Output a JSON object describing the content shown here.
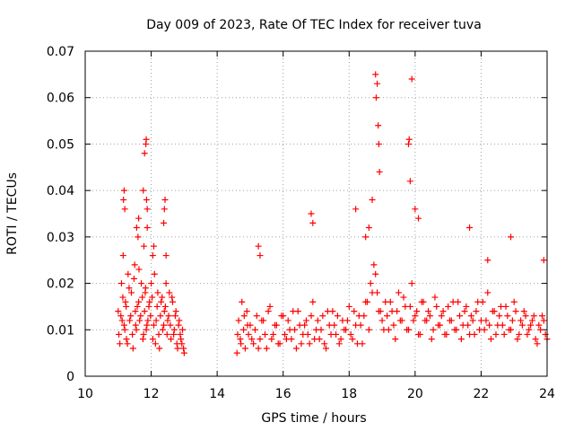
{
  "chart_data": {
    "type": "scatter",
    "title": "Day 009 of 2023, Rate Of TEC Index for receiver tuva",
    "xlabel": "GPS time / hours",
    "ylabel": "ROTI / TECUs",
    "xlim": [
      10,
      24
    ],
    "ylim": [
      0,
      0.07
    ],
    "xticks": [
      "10",
      "12",
      "14",
      "16",
      "18",
      "20",
      "22",
      "24"
    ],
    "yticks": [
      "0",
      "0.01",
      "0.02",
      "0.03",
      "0.04",
      "0.05",
      "0.06",
      "0.07"
    ],
    "grid": true,
    "marker": "+",
    "color": "#ff0000",
    "series": [
      {
        "x": [
          11.0,
          11.05,
          11.1,
          11.12,
          11.15,
          11.2,
          11.22,
          11.25,
          11.3,
          11.35,
          11.4,
          11.45,
          11.5,
          11.52,
          11.55,
          11.6,
          11.62,
          11.65,
          11.7,
          11.75,
          11.78,
          11.8,
          11.82,
          11.85,
          11.88,
          11.9,
          11.95,
          12.0,
          12.05,
          12.1,
          12.15,
          12.2,
          12.25,
          12.3,
          12.35,
          12.4,
          12.45,
          12.5,
          12.55,
          12.6,
          12.65,
          12.7,
          12.75,
          12.8,
          12.85,
          12.9,
          12.95,
          13.0,
          11.02,
          11.08,
          11.14,
          11.18,
          11.24,
          11.28,
          11.33,
          11.38,
          11.43,
          11.48,
          11.53,
          11.58,
          11.63,
          11.68,
          11.73,
          11.77,
          11.83,
          11.87,
          11.93,
          11.98,
          12.03,
          12.08,
          12.13,
          12.18,
          12.23,
          12.28,
          12.33,
          12.38,
          12.43,
          12.48,
          12.53,
          12.58,
          12.63,
          12.68,
          12.73,
          12.78,
          12.83,
          12.88,
          12.93,
          12.98,
          11.16,
          11.18,
          11.2,
          11.56,
          11.62,
          11.76,
          11.8,
          11.84,
          11.85,
          11.86,
          11.88,
          12.05,
          12.08,
          12.38,
          12.4,
          12.42,
          12.45
        ],
        "y": [
          0.014,
          0.007,
          0.02,
          0.012,
          0.026,
          0.01,
          0.016,
          0.008,
          0.022,
          0.012,
          0.018,
          0.006,
          0.024,
          0.014,
          0.01,
          0.03,
          0.016,
          0.012,
          0.02,
          0.008,
          0.028,
          0.014,
          0.018,
          0.01,
          0.032,
          0.012,
          0.016,
          0.02,
          0.008,
          0.022,
          0.012,
          0.018,
          0.006,
          0.016,
          0.01,
          0.014,
          0.02,
          0.012,
          0.018,
          0.008,
          0.016,
          0.01,
          0.014,
          0.006,
          0.012,
          0.008,
          0.01,
          0.005,
          0.009,
          0.013,
          0.017,
          0.011,
          0.015,
          0.007,
          0.019,
          0.013,
          0.009,
          0.021,
          0.011,
          0.015,
          0.023,
          0.013,
          0.017,
          0.009,
          0.019,
          0.011,
          0.015,
          0.013,
          0.017,
          0.011,
          0.007,
          0.015,
          0.009,
          0.013,
          0.017,
          0.011,
          0.015,
          0.009,
          0.013,
          0.011,
          0.017,
          0.009,
          0.013,
          0.007,
          0.011,
          0.009,
          0.007,
          0.006,
          0.038,
          0.04,
          0.036,
          0.032,
          0.034,
          0.04,
          0.048,
          0.05,
          0.051,
          0.038,
          0.036,
          0.026,
          0.028,
          0.033,
          0.036,
          0.038,
          0.026
        ]
      },
      {
        "x": [
          14.6,
          14.65,
          14.7,
          14.75,
          14.8,
          14.85,
          14.9,
          14.95,
          15.0,
          15.1,
          15.2,
          15.3,
          15.4,
          15.5,
          15.6,
          15.7,
          15.8,
          15.9,
          16.0,
          16.1,
          16.2,
          16.3,
          16.4,
          16.5,
          16.6,
          16.7,
          16.8,
          16.9,
          17.0,
          17.1,
          17.2,
          17.3,
          17.4,
          17.5,
          17.6,
          17.7,
          17.8,
          17.9,
          18.0,
          18.1,
          18.2,
          18.3,
          18.4,
          18.5,
          18.6,
          18.7,
          18.8,
          18.9,
          19.0,
          19.1,
          19.2,
          19.3,
          19.4,
          19.5,
          19.6,
          19.7,
          19.8,
          19.9,
          20.0,
          20.1,
          20.2,
          20.3,
          20.4,
          20.5,
          20.6,
          20.7,
          20.8,
          20.9,
          21.0,
          21.1,
          21.2,
          21.3,
          21.4,
          21.5,
          21.6,
          21.7,
          21.8,
          21.9,
          22.0,
          22.1,
          22.2,
          22.3,
          22.4,
          22.5,
          22.6,
          22.7,
          22.8,
          22.9,
          23.0,
          23.1,
          23.2,
          23.3,
          23.4,
          23.5,
          23.6,
          23.7,
          23.8,
          23.9,
          24.0,
          14.62,
          14.72,
          14.82,
          14.92,
          15.05,
          15.15,
          15.25,
          15.35,
          15.45,
          15.55,
          15.65,
          15.75,
          15.85,
          15.95,
          16.05,
          16.15,
          16.25,
          16.35,
          16.45,
          16.55,
          16.65,
          16.75,
          16.85,
          16.95,
          17.05,
          17.15,
          17.25,
          17.35,
          17.45,
          17.55,
          17.65,
          17.75,
          17.85,
          17.95,
          18.05,
          18.15,
          18.25,
          18.35,
          18.45,
          18.55,
          18.65,
          18.75,
          18.85,
          18.95,
          19.05,
          19.15,
          19.25,
          19.35,
          19.45,
          19.55,
          19.65,
          19.75,
          19.85,
          19.95,
          20.05,
          20.15,
          20.25,
          20.35,
          20.45,
          20.55,
          20.65,
          20.75,
          20.85,
          20.95,
          21.05,
          21.15,
          21.25,
          21.35,
          21.45,
          21.55,
          21.65,
          21.75,
          21.85,
          21.95,
          22.05,
          22.15,
          22.25,
          22.35,
          22.45,
          22.55,
          22.65,
          22.75,
          22.85,
          22.95,
          23.05,
          23.15,
          23.25,
          23.35,
          23.45,
          23.55,
          23.65,
          23.75,
          23.85,
          23.95,
          15.25,
          15.3,
          16.85,
          16.9,
          18.2,
          18.5,
          18.6,
          18.7,
          18.8,
          18.82,
          18.85,
          18.88,
          18.9,
          18.92,
          19.8,
          19.82,
          19.85,
          19.9,
          20.0,
          20.1,
          21.65,
          22.2,
          22.9,
          23.9
        ],
        "y": [
          0.005,
          0.012,
          0.008,
          0.016,
          0.01,
          0.006,
          0.014,
          0.009,
          0.011,
          0.007,
          0.013,
          0.008,
          0.012,
          0.006,
          0.015,
          0.009,
          0.011,
          0.007,
          0.013,
          0.008,
          0.01,
          0.014,
          0.006,
          0.011,
          0.009,
          0.012,
          0.007,
          0.016,
          0.01,
          0.008,
          0.013,
          0.006,
          0.011,
          0.014,
          0.009,
          0.007,
          0.012,
          0.01,
          0.015,
          0.008,
          0.011,
          0.013,
          0.007,
          0.016,
          0.01,
          0.018,
          0.022,
          0.014,
          0.012,
          0.016,
          0.01,
          0.014,
          0.008,
          0.018,
          0.012,
          0.015,
          0.01,
          0.02,
          0.013,
          0.009,
          0.016,
          0.012,
          0.014,
          0.008,
          0.017,
          0.011,
          0.013,
          0.009,
          0.015,
          0.012,
          0.01,
          0.016,
          0.008,
          0.014,
          0.011,
          0.013,
          0.009,
          0.016,
          0.012,
          0.01,
          0.018,
          0.008,
          0.014,
          0.011,
          0.015,
          0.009,
          0.013,
          0.01,
          0.016,
          0.008,
          0.012,
          0.014,
          0.009,
          0.011,
          0.013,
          0.007,
          0.01,
          0.012,
          0.008,
          0.009,
          0.007,
          0.013,
          0.011,
          0.008,
          0.01,
          0.006,
          0.012,
          0.009,
          0.014,
          0.008,
          0.011,
          0.007,
          0.013,
          0.009,
          0.012,
          0.008,
          0.01,
          0.014,
          0.007,
          0.011,
          0.009,
          0.013,
          0.008,
          0.012,
          0.01,
          0.007,
          0.014,
          0.009,
          0.011,
          0.013,
          0.008,
          0.01,
          0.012,
          0.009,
          0.014,
          0.007,
          0.011,
          0.013,
          0.016,
          0.02,
          0.024,
          0.018,
          0.014,
          0.01,
          0.013,
          0.016,
          0.011,
          0.014,
          0.012,
          0.017,
          0.01,
          0.015,
          0.012,
          0.014,
          0.009,
          0.016,
          0.012,
          0.013,
          0.01,
          0.015,
          0.011,
          0.014,
          0.009,
          0.012,
          0.016,
          0.01,
          0.013,
          0.011,
          0.015,
          0.009,
          0.012,
          0.014,
          0.01,
          0.016,
          0.012,
          0.011,
          0.014,
          0.009,
          0.013,
          0.011,
          0.015,
          0.01,
          0.012,
          0.014,
          0.009,
          0.011,
          0.013,
          0.01,
          0.012,
          0.008,
          0.011,
          0.013,
          0.009,
          0.028,
          0.026,
          0.035,
          0.033,
          0.036,
          0.03,
          0.032,
          0.038,
          0.065,
          0.06,
          0.063,
          0.054,
          0.05,
          0.044,
          0.05,
          0.051,
          0.042,
          0.064,
          0.036,
          0.034,
          0.032,
          0.025,
          0.03,
          0.025
        ]
      }
    ]
  }
}
